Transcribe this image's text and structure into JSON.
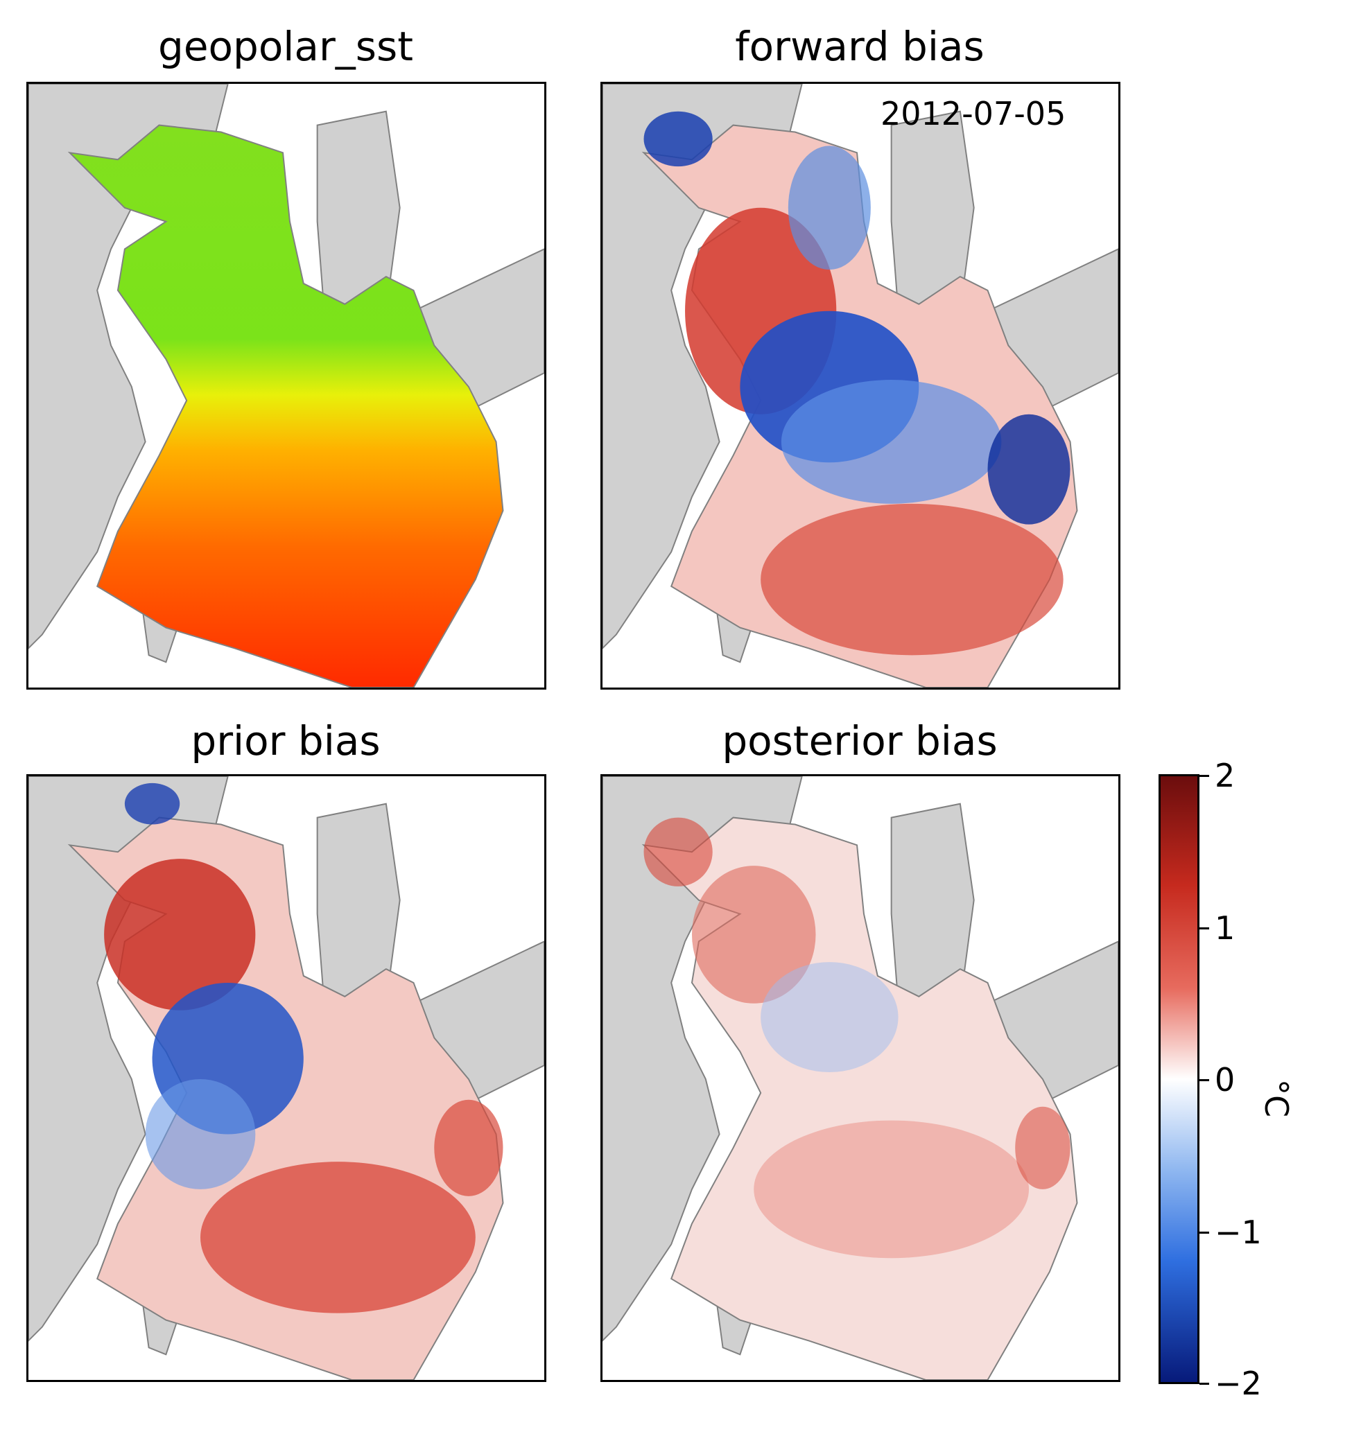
{
  "figure": {
    "panels": [
      {
        "id": "sst",
        "title": "geopolar_sst"
      },
      {
        "id": "forward",
        "title": "forward bias",
        "annotation": "2012-07-05"
      },
      {
        "id": "prior",
        "title": "prior bias"
      },
      {
        "id": "posterior",
        "title": "posterior bias"
      }
    ],
    "colorbar": {
      "label": "°C",
      "ticks": [
        "2",
        "1",
        "0",
        "−1",
        "−2"
      ],
      "range": [
        -2,
        2
      ],
      "colors": {
        "max": "#6b0d0d",
        "mid": "#ffffff",
        "min": "#071a7a"
      }
    },
    "colors": {
      "land": "#d0d0d0",
      "coast": "#808080",
      "sst_cool": "#7be31a",
      "sst_warm": "#ff2a00"
    }
  }
}
